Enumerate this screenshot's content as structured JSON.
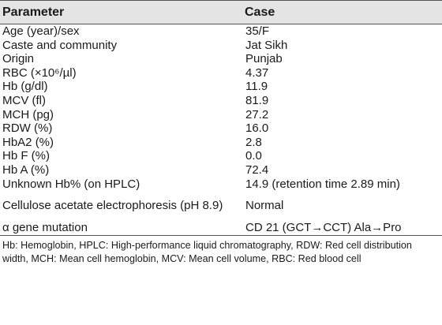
{
  "table": {
    "header": {
      "col1": "Parameter",
      "col2": "Case"
    },
    "rows": [
      {
        "param": "Age (year)/sex",
        "value": "35/F"
      },
      {
        "param": "Caste and community",
        "value": "Jat Sikh"
      },
      {
        "param": "Origin",
        "value": "Punjab"
      },
      {
        "param": "RBC (×10⁶/µl)",
        "value": "4.37"
      },
      {
        "param": "Hb (g/dl)",
        "value": "11.9"
      },
      {
        "param": "MCV (fl)",
        "value": "81.9"
      },
      {
        "param": "MCH (pg)",
        "value": "27.2"
      },
      {
        "param": "RDW (%)",
        "value": "16.0"
      },
      {
        "param": "HbA2 (%)",
        "value": "2.8"
      },
      {
        "param": "Hb F (%)",
        "value": "0.0"
      },
      {
        "param": "Hb A (%)",
        "value": "72.4"
      },
      {
        "param": "Unknown Hb% (on HPLC)",
        "value": "14.9 (retention time 2.89 min)"
      },
      {
        "param": "Cellulose acetate electrophoresis (pH 8.9)",
        "value": "Normal"
      },
      {
        "param": "α gene mutation",
        "value": "CD 21 (GCT→CCT) Ala→Pro"
      }
    ]
  },
  "footnote": "Hb: Hemoglobin, HPLC: High-performance liquid chromatography, RDW: Red cell distribution width, MCH: Mean cell hemoglobin, MCV: Mean cell volume, RBC: Red blood cell"
}
